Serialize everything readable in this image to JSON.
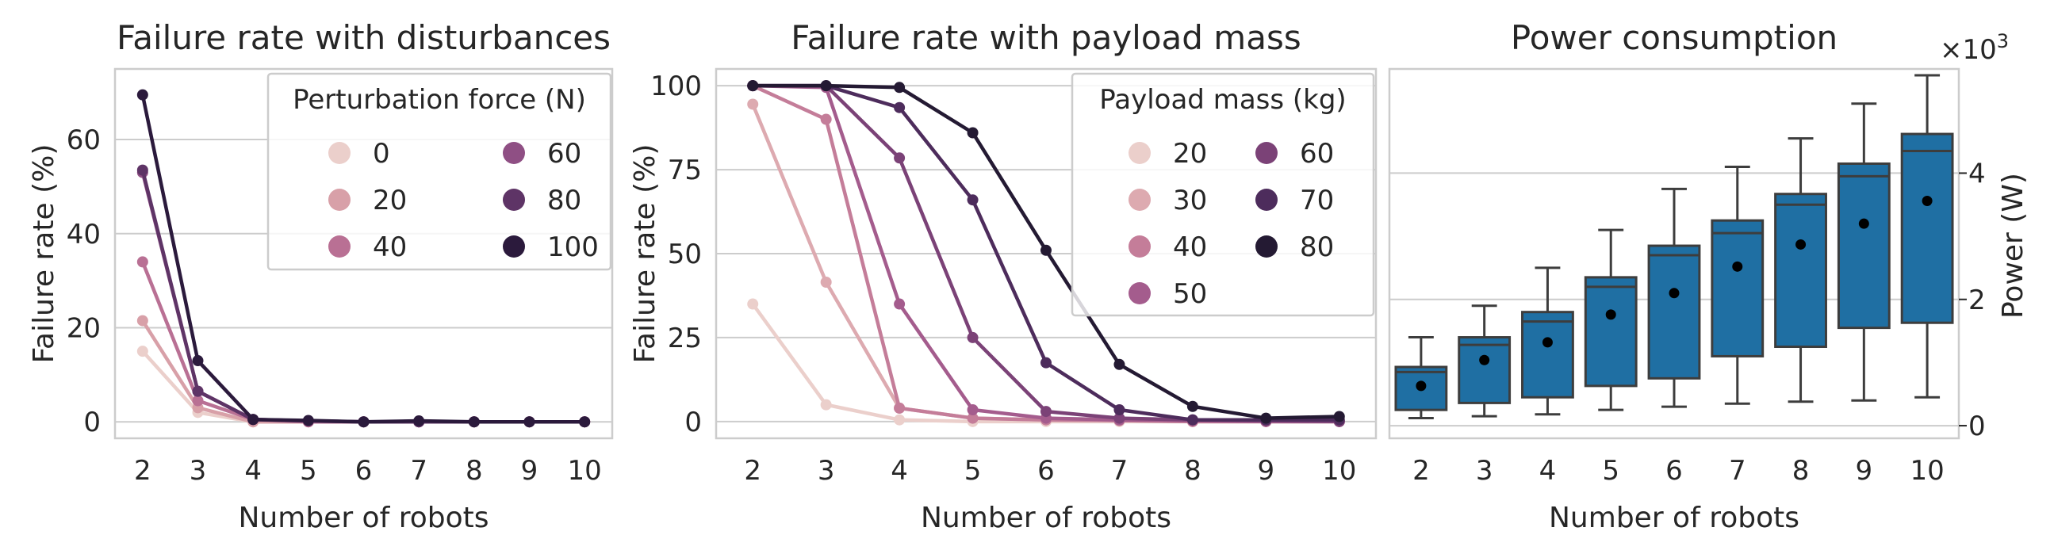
{
  "chart_data": [
    {
      "type": "line",
      "title": "Failure rate with disturbances",
      "xlabel": "Number of robots",
      "ylabel": "Failure rate (%)",
      "categories": [
        "2",
        "3",
        "4",
        "5",
        "6",
        "7",
        "8",
        "9",
        "10"
      ],
      "ylim": [
        -3.5,
        75
      ],
      "yticks": [
        0,
        20,
        40,
        60
      ],
      "grid": true,
      "legend": {
        "title": "Perturbation force (N)",
        "placement": "top-right",
        "columns": 2
      },
      "series": [
        {
          "name": "0",
          "color": "#ebcfcb",
          "values": [
            15,
            2,
            0,
            0,
            0,
            0,
            0,
            0,
            0
          ]
        },
        {
          "name": "20",
          "color": "#d8a0a8",
          "values": [
            21.5,
            3,
            0,
            0,
            0,
            0,
            0,
            0,
            0
          ]
        },
        {
          "name": "40",
          "color": "#b97094",
          "values": [
            34,
            4.5,
            0.5,
            0,
            0,
            0,
            0,
            0,
            0
          ]
        },
        {
          "name": "60",
          "color": "#8f4f84",
          "values": [
            53,
            6.5,
            0.5,
            0.2,
            0,
            0,
            0,
            0,
            0
          ]
        },
        {
          "name": "80",
          "color": "#5e3466",
          "values": [
            53.5,
            6.5,
            0.5,
            0.2,
            0,
            0,
            0,
            0,
            0
          ]
        },
        {
          "name": "100",
          "color": "#2b1a3c",
          "values": [
            69.5,
            13,
            0.5,
            0.3,
            0,
            0.2,
            0,
            0,
            0
          ]
        }
      ]
    },
    {
      "type": "line",
      "title": "Failure rate with payload mass",
      "xlabel": "Number of robots",
      "ylabel": "Failure rate (%)",
      "categories": [
        "2",
        "3",
        "4",
        "5",
        "6",
        "7",
        "8",
        "9",
        "10"
      ],
      "ylim": [
        -5,
        105
      ],
      "yticks": [
        0,
        25,
        50,
        75,
        100
      ],
      "grid": true,
      "legend": {
        "title": "Payload mass (kg)",
        "placement": "top-right",
        "columns": 2
      },
      "series": [
        {
          "name": "20",
          "color": "#ebcfcb",
          "values": [
            35,
            5,
            0.5,
            0,
            0,
            0,
            0,
            0,
            0
          ]
        },
        {
          "name": "30",
          "color": "#ddaab0",
          "values": [
            94.5,
            41.5,
            4,
            1,
            0.5,
            0.3,
            0,
            0,
            0
          ]
        },
        {
          "name": "40",
          "color": "#c47d99",
          "values": [
            100,
            90,
            4,
            1,
            0.5,
            0.3,
            0,
            0,
            0
          ]
        },
        {
          "name": "50",
          "color": "#a45c8d",
          "values": [
            100,
            99.5,
            35,
            3.5,
            1,
            0.5,
            0.3,
            0,
            0
          ]
        },
        {
          "name": "60",
          "color": "#7b4277",
          "values": [
            100,
            100,
            78.5,
            25,
            3,
            1,
            0.5,
            0.3,
            0
          ]
        },
        {
          "name": "70",
          "color": "#4d2c5c",
          "values": [
            100,
            100,
            93.5,
            66,
            17.5,
            3.5,
            0.5,
            0.5,
            0.5
          ]
        },
        {
          "name": "80",
          "color": "#241a33",
          "values": [
            100,
            100,
            99.5,
            86,
            51,
            17,
            4.5,
            1,
            1.5
          ]
        }
      ]
    },
    {
      "type": "box",
      "title": "Power consumption",
      "xlabel": "Number of robots",
      "ylabel": "Power (W)",
      "y_scale_label": "×10",
      "y_scale_exponent": "3",
      "y_axis_side": "right",
      "categories": [
        "2",
        "3",
        "4",
        "5",
        "6",
        "7",
        "8",
        "9",
        "10"
      ],
      "ylim": [
        -0.2,
        5.65
      ],
      "yticks": [
        0,
        2,
        4
      ],
      "color": "#1f6fa3",
      "grid": true,
      "boxes": [
        {
          "whislo": 0.12,
          "q1": 0.25,
          "med": 0.85,
          "q3": 0.93,
          "whishi": 1.4,
          "mean": 0.63
        },
        {
          "whislo": 0.15,
          "q1": 0.36,
          "med": 1.28,
          "q3": 1.4,
          "whishi": 1.9,
          "mean": 1.04
        },
        {
          "whislo": 0.18,
          "q1": 0.45,
          "med": 1.65,
          "q3": 1.8,
          "whishi": 2.5,
          "mean": 1.32
        },
        {
          "whislo": 0.25,
          "q1": 0.63,
          "med": 2.2,
          "q3": 2.35,
          "whishi": 3.1,
          "mean": 1.76
        },
        {
          "whislo": 0.3,
          "q1": 0.75,
          "med": 2.7,
          "q3": 2.85,
          "whishi": 3.75,
          "mean": 2.1
        },
        {
          "whislo": 0.35,
          "q1": 1.1,
          "med": 3.05,
          "q3": 3.25,
          "whishi": 4.1,
          "mean": 2.52
        },
        {
          "whislo": 0.38,
          "q1": 1.25,
          "med": 3.5,
          "q3": 3.67,
          "whishi": 4.55,
          "mean": 2.87
        },
        {
          "whislo": 0.4,
          "q1": 1.55,
          "med": 3.95,
          "q3": 4.15,
          "whishi": 5.1,
          "mean": 3.2
        },
        {
          "whislo": 0.45,
          "q1": 1.63,
          "med": 4.35,
          "q3": 4.62,
          "whishi": 5.55,
          "mean": 3.56
        }
      ]
    }
  ]
}
